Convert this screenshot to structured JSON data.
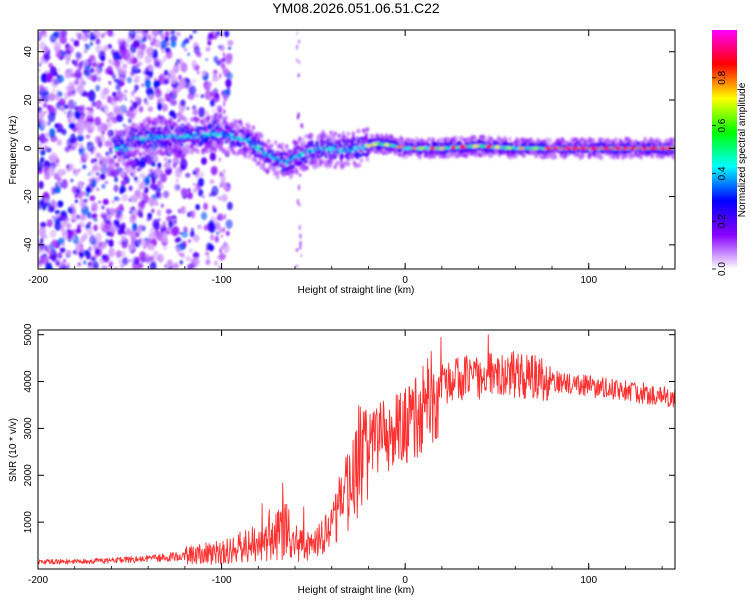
{
  "chart_data": [
    {
      "type": "heatmap",
      "title": "YM08.2026.051.06.51.C22",
      "xlabel": "Height of straight line (km)",
      "ylabel": "Frequency (Hz)",
      "xlim": [
        -200,
        147
      ],
      "ylim": [
        -50,
        49
      ],
      "xticks": [
        -200,
        -100,
        0,
        100
      ],
      "yticks": [
        -40,
        -20,
        0,
        20,
        40
      ],
      "colorbar": {
        "label": "Normalized spectral amplitude",
        "ticks": [
          0.0,
          0.2,
          0.4,
          0.6,
          0.8
        ],
        "range": [
          0,
          1
        ],
        "colormap": [
          "#ffffff",
          "#8800ff",
          "#0000ff",
          "#00ffff",
          "#00ff00",
          "#ffff00",
          "#ff0000",
          "#ff00ff"
        ]
      },
      "ridge": {
        "description_points_x": [
          -150,
          -120,
          -100,
          -85,
          -75,
          -65,
          -55,
          -45,
          -35,
          -25,
          -15,
          -5,
          0,
          20,
          40,
          60,
          80,
          100,
          147
        ],
        "frequency_hz": [
          4,
          5,
          6,
          3,
          -3,
          -6,
          -2,
          0,
          -1,
          0,
          2,
          1,
          0,
          0,
          1,
          0,
          0,
          0,
          0
        ]
      }
    },
    {
      "type": "line",
      "xlabel": "Height of straight line (km)",
      "ylabel": "SNR (10 * v/v)",
      "xlim": [
        -200,
        147
      ],
      "ylim": [
        0,
        5100
      ],
      "xticks": [
        -200,
        -100,
        0,
        100
      ],
      "yticks": [
        1000,
        2000,
        3000,
        4000,
        5000
      ],
      "color": "#ff3030",
      "series": [
        {
          "name": "SNR",
          "x": [
            -200,
            -180,
            -160,
            -140,
            -120,
            -110,
            -100,
            -90,
            -80,
            -75,
            -70,
            -65,
            -60,
            -55,
            -50,
            -45,
            -40,
            -35,
            -30,
            -25,
            -20,
            -15,
            -10,
            -5,
            0,
            5,
            10,
            15,
            20,
            25,
            30,
            40,
            50,
            60,
            70,
            80,
            90,
            100,
            110,
            120,
            130,
            147
          ],
          "values": [
            150,
            160,
            180,
            220,
            280,
            320,
            380,
            460,
            560,
            650,
            750,
            820,
            700,
            500,
            560,
            700,
            950,
            1400,
            1900,
            2300,
            2600,
            2750,
            2850,
            2950,
            3050,
            3200,
            3450,
            3700,
            3900,
            4000,
            4050,
            4100,
            4150,
            4150,
            4100,
            4000,
            3950,
            3900,
            3850,
            3800,
            3750,
            3650
          ]
        }
      ]
    }
  ]
}
